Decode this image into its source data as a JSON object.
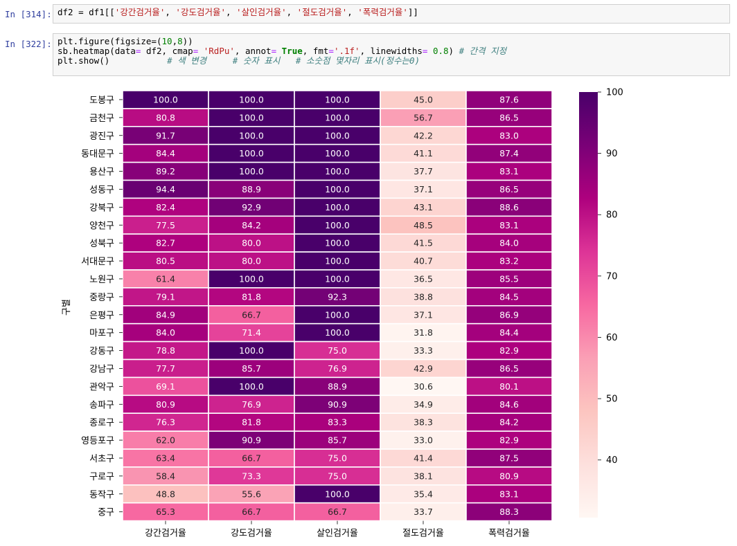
{
  "cells": [
    {
      "prompt": "In [314]:",
      "code": {
        "prefix": "df2 = df1[[",
        "cols": [
          "'강간검거율'",
          "'강도검거율'",
          "'살인검거율'",
          "'절도검거율'",
          "'폭력검거율'"
        ],
        "suffix": "]]"
      }
    },
    {
      "prompt": "In [322]:",
      "line1": {
        "a": "plt.figure(figsize=(",
        "n1": "10",
        "comma": ",",
        "n2": "8",
        "b": "))"
      },
      "line2": {
        "a": "sb.heatmap(data",
        "eq1": "=",
        "b": " df2, cmap",
        "eq2": "=",
        "s1": " 'RdPu'",
        "c": ", annot",
        "eq3": "=",
        "kw": " True",
        "d": ", fmt",
        "eq4": "=",
        "s2": "'.1f'",
        "e": ", linewidths",
        "eq5": "=",
        "n": " 0.8",
        "f": ") ",
        "cmt": "# 간격 지정"
      },
      "line3": {
        "a": "plt.show()",
        "gap": "           ",
        "cmt": "# 색 변경     # 숫자 표시   # 소숫점 몇자리 표시(정수는0)"
      }
    }
  ],
  "chart_data": {
    "type": "heatmap",
    "cmap": "RdPu",
    "ylabel": "구별",
    "columns": [
      "강간검거율",
      "강도검거율",
      "살인검거율",
      "절도검거율",
      "폭력검거율"
    ],
    "rows": [
      "도봉구",
      "금천구",
      "광진구",
      "동대문구",
      "용산구",
      "성동구",
      "강북구",
      "양천구",
      "성북구",
      "서대문구",
      "노원구",
      "중랑구",
      "은평구",
      "마포구",
      "강동구",
      "강남구",
      "관악구",
      "송파구",
      "종로구",
      "영등포구",
      "서초구",
      "구로구",
      "동작구",
      "중구"
    ],
    "values": [
      [
        100.0,
        100.0,
        100.0,
        45.0,
        87.6
      ],
      [
        80.8,
        100.0,
        100.0,
        56.7,
        86.5
      ],
      [
        91.7,
        100.0,
        100.0,
        42.2,
        83.0
      ],
      [
        84.4,
        100.0,
        100.0,
        41.1,
        87.4
      ],
      [
        89.2,
        100.0,
        100.0,
        37.7,
        83.1
      ],
      [
        94.4,
        88.9,
        100.0,
        37.1,
        86.5
      ],
      [
        82.4,
        92.9,
        100.0,
        43.1,
        88.6
      ],
      [
        77.5,
        84.2,
        100.0,
        48.5,
        83.1
      ],
      [
        82.7,
        80.0,
        100.0,
        41.5,
        84.0
      ],
      [
        80.5,
        80.0,
        100.0,
        40.7,
        83.2
      ],
      [
        61.4,
        100.0,
        100.0,
        36.5,
        85.5
      ],
      [
        79.1,
        81.8,
        92.3,
        38.8,
        84.5
      ],
      [
        84.9,
        66.7,
        100.0,
        37.1,
        86.9
      ],
      [
        84.0,
        71.4,
        100.0,
        31.8,
        84.4
      ],
      [
        78.8,
        100.0,
        75.0,
        33.3,
        82.9
      ],
      [
        77.7,
        85.7,
        76.9,
        42.9,
        86.5
      ],
      [
        69.1,
        100.0,
        88.9,
        30.6,
        80.1
      ],
      [
        80.9,
        76.9,
        90.9,
        34.9,
        84.6
      ],
      [
        76.3,
        81.8,
        83.3,
        38.3,
        84.2
      ],
      [
        62.0,
        90.9,
        85.7,
        33.0,
        82.9
      ],
      [
        63.4,
        66.7,
        75.0,
        41.4,
        87.5
      ],
      [
        58.4,
        73.3,
        75.0,
        38.1,
        80.9
      ],
      [
        48.8,
        55.6,
        100.0,
        35.4,
        83.1
      ],
      [
        65.3,
        66.7,
        66.7,
        33.7,
        88.3
      ]
    ],
    "vmin": 30.6,
    "vmax": 100.0,
    "colorbar_ticks": [
      40,
      50,
      60,
      70,
      80,
      90,
      100
    ],
    "annot_format": ".1f"
  }
}
